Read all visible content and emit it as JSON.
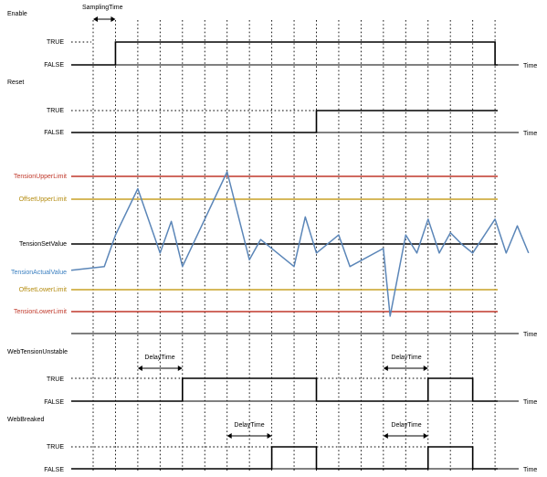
{
  "colors": {
    "signal": "#000000",
    "tension_upper": "#c0392b",
    "offset_limit": "#c9a227",
    "setvalue": "#000000",
    "actual": "#5b86b8"
  },
  "time_label": "Time",
  "sampling_time_label": "SamplingTime",
  "delay_time_label": "DelayTime",
  "panels": {
    "enable": {
      "title": "Enable",
      "true_label": "TRUE",
      "false_label": "FALSE"
    },
    "reset": {
      "title": "Reset",
      "true_label": "TRUE",
      "false_label": "FALSE"
    },
    "tension": {
      "upper_limit": "TensionUpperLimit",
      "offset_upper": "OffsetUpperLimit",
      "set_value": "TensionSetValue",
      "actual_value": "TensionActualValue",
      "offset_lower": "OffsetLowerLimit",
      "lower_limit": "TensionLowerLimit"
    },
    "unstable": {
      "title": "WebTensionUnstable",
      "true_label": "TRUE",
      "false_label": "FALSE"
    },
    "breaked": {
      "title": "WebBreaked",
      "true_label": "TRUE",
      "false_label": "FALSE"
    }
  },
  "signals": {
    "sample_count": 18,
    "enable": [
      [
        0,
        0
      ],
      [
        1,
        1
      ],
      [
        18,
        0
      ]
    ],
    "reset": [
      [
        0,
        0
      ],
      [
        10,
        1
      ]
    ],
    "unstable": [
      [
        0,
        0
      ],
      [
        4,
        1
      ],
      [
        10,
        0
      ],
      [
        15,
        1
      ],
      [
        17,
        0
      ]
    ],
    "breaked": [
      [
        0,
        0
      ],
      [
        8,
        1
      ],
      [
        10,
        0
      ],
      [
        15,
        1
      ],
      [
        17,
        0
      ]
    ],
    "delay_windows": {
      "unstable": [
        [
          2,
          4
        ],
        [
          13,
          15
        ]
      ],
      "breaked": [
        [
          6,
          8
        ],
        [
          13,
          15
        ]
      ]
    }
  },
  "tension_levels": {
    "upper_limit": 3,
    "offset_upper": 2,
    "set_value": 0,
    "offset_lower": -2,
    "lower_limit": -3
  },
  "tension_curve": [
    [
      -1,
      -1.16
    ],
    [
      0.5,
      -1
    ],
    [
      1,
      0.4
    ],
    [
      2,
      2.45
    ],
    [
      3,
      -0.4
    ],
    [
      3.5,
      1
    ],
    [
      4,
      -1
    ],
    [
      6,
      3.2
    ],
    [
      7,
      -0.7
    ],
    [
      7.5,
      0.2
    ],
    [
      9,
      -1
    ],
    [
      9.5,
      1.2
    ],
    [
      10,
      -0.4
    ],
    [
      11,
      0.4
    ],
    [
      11.5,
      -1
    ],
    [
      13,
      -0.2
    ],
    [
      13.3,
      -3.2
    ],
    [
      14,
      0.4
    ],
    [
      14.5,
      -0.4
    ],
    [
      15,
      1.1
    ],
    [
      15.5,
      -0.4
    ],
    [
      16,
      0.5
    ],
    [
      16.5,
      0
    ],
    [
      17,
      -0.4
    ],
    [
      18,
      1.1
    ],
    [
      18.5,
      -0.4
    ],
    [
      19,
      0.8
    ],
    [
      19.5,
      -0.4
    ]
  ]
}
